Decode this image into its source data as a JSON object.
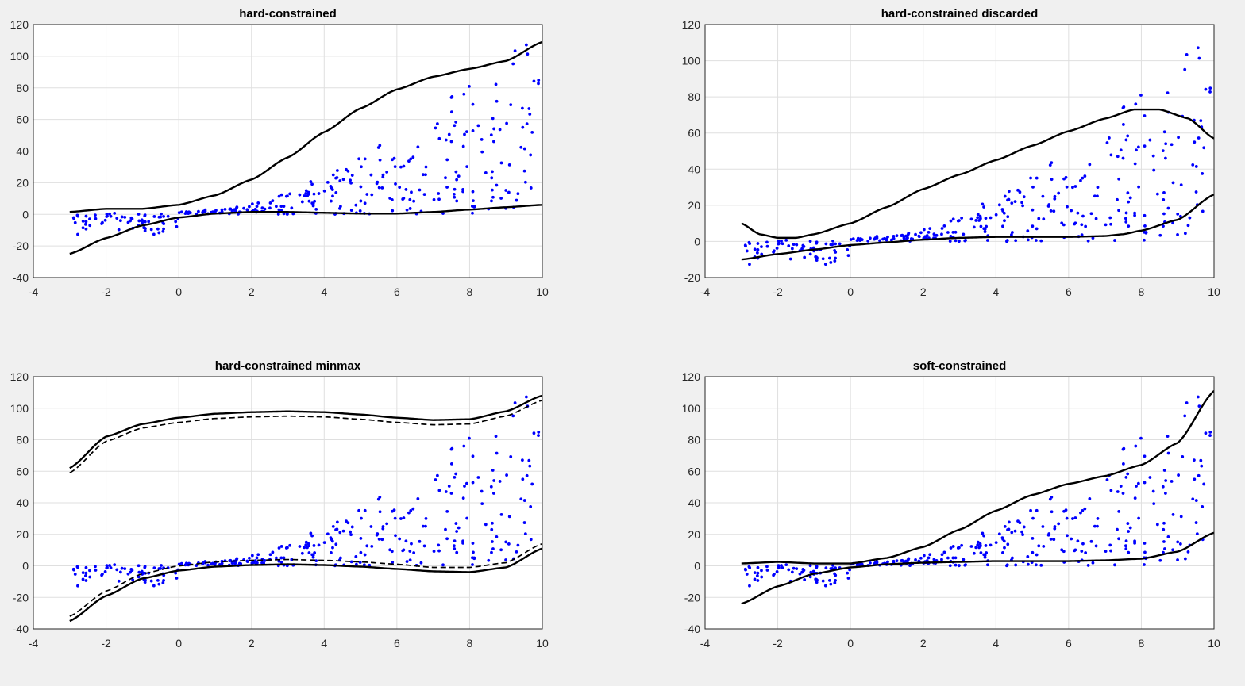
{
  "window": {
    "background": "#f0f0f0"
  },
  "style": {
    "point_color": "#0000ff",
    "curve_color": "#000000",
    "grid_color": "#dfdfdf"
  },
  "chart_data": [
    {
      "type": "scatter",
      "title": "hard-constrained",
      "xlim": [
        -4,
        10
      ],
      "ylim": [
        -40,
        120
      ],
      "xticks": [
        "-4",
        "-2",
        "0",
        "2",
        "4",
        "6",
        "8",
        "10"
      ],
      "yticks": [
        "-40",
        "-20",
        "0",
        "20",
        "40",
        "60",
        "80",
        "100",
        "120"
      ],
      "grid": true,
      "upper": [
        [
          -3,
          1.5
        ],
        [
          -2,
          3.5
        ],
        [
          -1,
          3.5
        ],
        [
          0,
          6
        ],
        [
          1,
          12
        ],
        [
          2,
          22
        ],
        [
          3,
          36
        ],
        [
          4,
          52
        ],
        [
          5,
          67
        ],
        [
          6,
          79
        ],
        [
          7,
          87
        ],
        [
          8,
          92
        ],
        [
          9,
          97
        ],
        [
          10,
          109
        ]
      ],
      "lower": [
        [
          -3,
          -25
        ],
        [
          -2,
          -15
        ],
        [
          -1,
          -7
        ],
        [
          0,
          -2
        ],
        [
          1,
          0.5
        ],
        [
          2,
          1.5
        ],
        [
          3,
          1.5
        ],
        [
          4,
          1
        ],
        [
          5,
          0.5
        ],
        [
          6,
          0.5
        ],
        [
          7,
          1.5
        ],
        [
          8,
          3
        ],
        [
          9,
          4.5
        ],
        [
          10,
          6
        ]
      ],
      "lower2": null
    },
    {
      "type": "scatter",
      "title": "hard-constrained discarded",
      "xlim": [
        -4,
        10
      ],
      "ylim": [
        -20,
        120
      ],
      "xticks": [
        "-4",
        "-2",
        "0",
        "2",
        "4",
        "6",
        "8",
        "10"
      ],
      "yticks": [
        "-20",
        "0",
        "20",
        "40",
        "60",
        "80",
        "100",
        "120"
      ],
      "grid": true,
      "upper": [
        [
          -3,
          10
        ],
        [
          -2.5,
          4
        ],
        [
          -2,
          2
        ],
        [
          -1.5,
          2
        ],
        [
          -1,
          4
        ],
        [
          0,
          10
        ],
        [
          1,
          19
        ],
        [
          2,
          29
        ],
        [
          3,
          37
        ],
        [
          4,
          45
        ],
        [
          5,
          53
        ],
        [
          6,
          61
        ],
        [
          7,
          68
        ],
        [
          7.8,
          73
        ],
        [
          8.5,
          73
        ],
        [
          9.3,
          68
        ],
        [
          10,
          57
        ]
      ],
      "lower": [
        [
          -3,
          -10
        ],
        [
          -2,
          -7
        ],
        [
          -1,
          -4.5
        ],
        [
          0,
          -2
        ],
        [
          1,
          -0.5
        ],
        [
          2,
          1
        ],
        [
          3,
          2
        ],
        [
          4,
          2.5
        ],
        [
          5,
          2.5
        ],
        [
          6,
          2.5
        ],
        [
          7,
          3
        ],
        [
          7.5,
          4
        ],
        [
          8,
          6
        ],
        [
          9,
          12
        ],
        [
          10,
          26
        ]
      ],
      "lower2": null
    },
    {
      "type": "scatter",
      "title": "hard-constrained minmax",
      "xlim": [
        -4,
        10
      ],
      "ylim": [
        -40,
        120
      ],
      "xticks": [
        "-4",
        "-2",
        "0",
        "2",
        "4",
        "6",
        "8",
        "10"
      ],
      "yticks": [
        "-40",
        "-20",
        "0",
        "20",
        "40",
        "60",
        "80",
        "100",
        "120"
      ],
      "grid": true,
      "upper": [
        [
          -3,
          62
        ],
        [
          -2,
          82
        ],
        [
          -1,
          90
        ],
        [
          0,
          94
        ],
        [
          1,
          96.5
        ],
        [
          2,
          97.5
        ],
        [
          3,
          98
        ],
        [
          4,
          97.5
        ],
        [
          5,
          96
        ],
        [
          6,
          94
        ],
        [
          7,
          92.5
        ],
        [
          8,
          93
        ],
        [
          9,
          98
        ],
        [
          10,
          108
        ]
      ],
      "upper_dashed": [
        [
          -3,
          59
        ],
        [
          -2,
          79
        ],
        [
          -1,
          87.5
        ],
        [
          0,
          91
        ],
        [
          1,
          93.5
        ],
        [
          2,
          94.5
        ],
        [
          3,
          95
        ],
        [
          4,
          94.5
        ],
        [
          5,
          93
        ],
        [
          6,
          91
        ],
        [
          7,
          89.5
        ],
        [
          8,
          90
        ],
        [
          9,
          95
        ],
        [
          10,
          105
        ]
      ],
      "lower": [
        [
          -3,
          -35
        ],
        [
          -2,
          -19
        ],
        [
          -1,
          -8
        ],
        [
          0,
          -3
        ],
        [
          1,
          -0.5
        ],
        [
          2,
          0.5
        ],
        [
          3,
          1
        ],
        [
          4,
          0.5
        ],
        [
          5,
          -0.5
        ],
        [
          6,
          -2
        ],
        [
          7,
          -3.5
        ],
        [
          8,
          -4
        ],
        [
          9,
          -1
        ],
        [
          10,
          11
        ]
      ],
      "lower2": [
        [
          -3,
          -32
        ],
        [
          -2,
          -16
        ],
        [
          -1,
          -5
        ],
        [
          0,
          0
        ],
        [
          1,
          2.5
        ],
        [
          2,
          3.5
        ],
        [
          3,
          4
        ],
        [
          4,
          3.5
        ],
        [
          5,
          2.5
        ],
        [
          6,
          1
        ],
        [
          7,
          -1
        ],
        [
          8,
          -1
        ],
        [
          9,
          2
        ],
        [
          10,
          14
        ]
      ]
    },
    {
      "type": "scatter",
      "title": "soft-constrained",
      "xlim": [
        -4,
        10
      ],
      "ylim": [
        -40,
        120
      ],
      "xticks": [
        "-4",
        "-2",
        "0",
        "2",
        "4",
        "6",
        "8",
        "10"
      ],
      "yticks": [
        "-40",
        "-20",
        "0",
        "20",
        "40",
        "60",
        "80",
        "100",
        "120"
      ],
      "grid": true,
      "upper": [
        [
          -3,
          1.5
        ],
        [
          -2,
          2.5
        ],
        [
          -1,
          1.5
        ],
        [
          0,
          1.5
        ],
        [
          1,
          5
        ],
        [
          2,
          12
        ],
        [
          3,
          23
        ],
        [
          4,
          35
        ],
        [
          5,
          45
        ],
        [
          6,
          52
        ],
        [
          7,
          57
        ],
        [
          8,
          64
        ],
        [
          9,
          78
        ],
        [
          10,
          111
        ]
      ],
      "lower": [
        [
          -3,
          -24
        ],
        [
          -2,
          -13
        ],
        [
          -1,
          -5
        ],
        [
          0,
          -1
        ],
        [
          1,
          1
        ],
        [
          2,
          2
        ],
        [
          3,
          2.5
        ],
        [
          4,
          3
        ],
        [
          5,
          3
        ],
        [
          6,
          3
        ],
        [
          7,
          3.5
        ],
        [
          8,
          4.5
        ],
        [
          9,
          9
        ],
        [
          10,
          21
        ]
      ],
      "lower2": null
    }
  ]
}
